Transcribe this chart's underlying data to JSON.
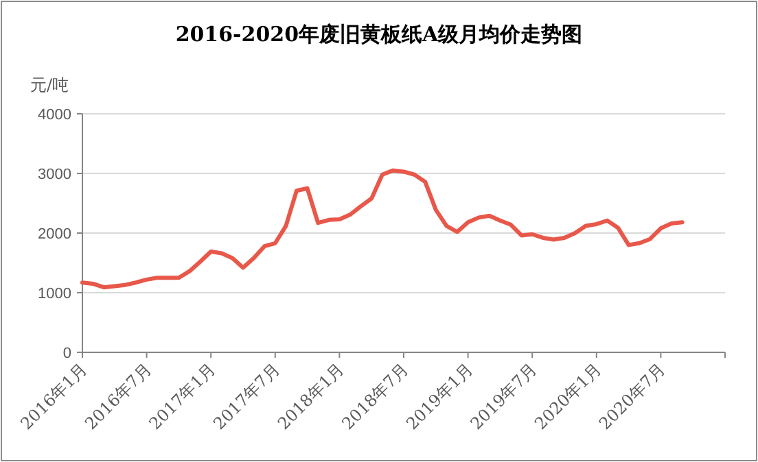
{
  "chart_data": {
    "type": "line",
    "title": "2016-2020年废旧黄板纸A级月均价走势图",
    "ylabel": "元/吨",
    "x": [
      "2016-01",
      "2016-02",
      "2016-03",
      "2016-04",
      "2016-05",
      "2016-06",
      "2016-07",
      "2016-08",
      "2016-09",
      "2016-10",
      "2016-11",
      "2016-12",
      "2017-01",
      "2017-02",
      "2017-03",
      "2017-04",
      "2017-05",
      "2017-06",
      "2017-07",
      "2017-08",
      "2017-09",
      "2017-10",
      "2017-11",
      "2017-12",
      "2018-01",
      "2018-02",
      "2018-03",
      "2018-04",
      "2018-05",
      "2018-06",
      "2018-07",
      "2018-08",
      "2018-09",
      "2018-10",
      "2018-11",
      "2018-12",
      "2019-01",
      "2019-02",
      "2019-03",
      "2019-04",
      "2019-05",
      "2019-06",
      "2019-07",
      "2019-08",
      "2019-09",
      "2019-10",
      "2019-11",
      "2019-12",
      "2020-01",
      "2020-02",
      "2020-03",
      "2020-04",
      "2020-05",
      "2020-06",
      "2020-07",
      "2020-08",
      "2020-09"
    ],
    "series": [
      {
        "color": "#e8584a",
        "values": [
          1170,
          1150,
          1090,
          1110,
          1130,
          1170,
          1220,
          1250,
          1250,
          1250,
          1360,
          1520,
          1690,
          1660,
          1580,
          1420,
          1580,
          1780,
          1830,
          2120,
          2710,
          2750,
          2170,
          2220,
          2230,
          2310,
          2450,
          2580,
          2980,
          3050,
          3030,
          2980,
          2860,
          2390,
          2120,
          2020,
          2180,
          2260,
          2290,
          2210,
          2140,
          1960,
          1980,
          1920,
          1890,
          1920,
          2000,
          2120,
          2150,
          2210,
          2090,
          1800,
          1830,
          1900,
          2080,
          2160,
          2180
        ]
      }
    ],
    "xlim": [
      "2016-01",
      "2021-01"
    ],
    "xticks": [
      {
        "value": "2016-01",
        "label": "2016年1月"
      },
      {
        "value": "2016-07",
        "label": "2016年7月"
      },
      {
        "value": "2017-01",
        "label": "2017年1月"
      },
      {
        "value": "2017-07",
        "label": "2017年7月"
      },
      {
        "value": "2018-01",
        "label": "2018年1月"
      },
      {
        "value": "2018-07",
        "label": "2018年7月"
      },
      {
        "value": "2019-01",
        "label": "2019年1月"
      },
      {
        "value": "2019-07",
        "label": "2019年7月"
      },
      {
        "value": "2020-01",
        "label": "2020年1月"
      },
      {
        "value": "2020-07",
        "label": "2020年7月"
      },
      {
        "value": "2021-01",
        "label": null
      }
    ],
    "ylim": [
      0,
      4000
    ],
    "yticks": [
      0,
      1000,
      2000,
      3000,
      4000
    ],
    "grid": "y",
    "marker": "none",
    "line_style": "solid"
  }
}
